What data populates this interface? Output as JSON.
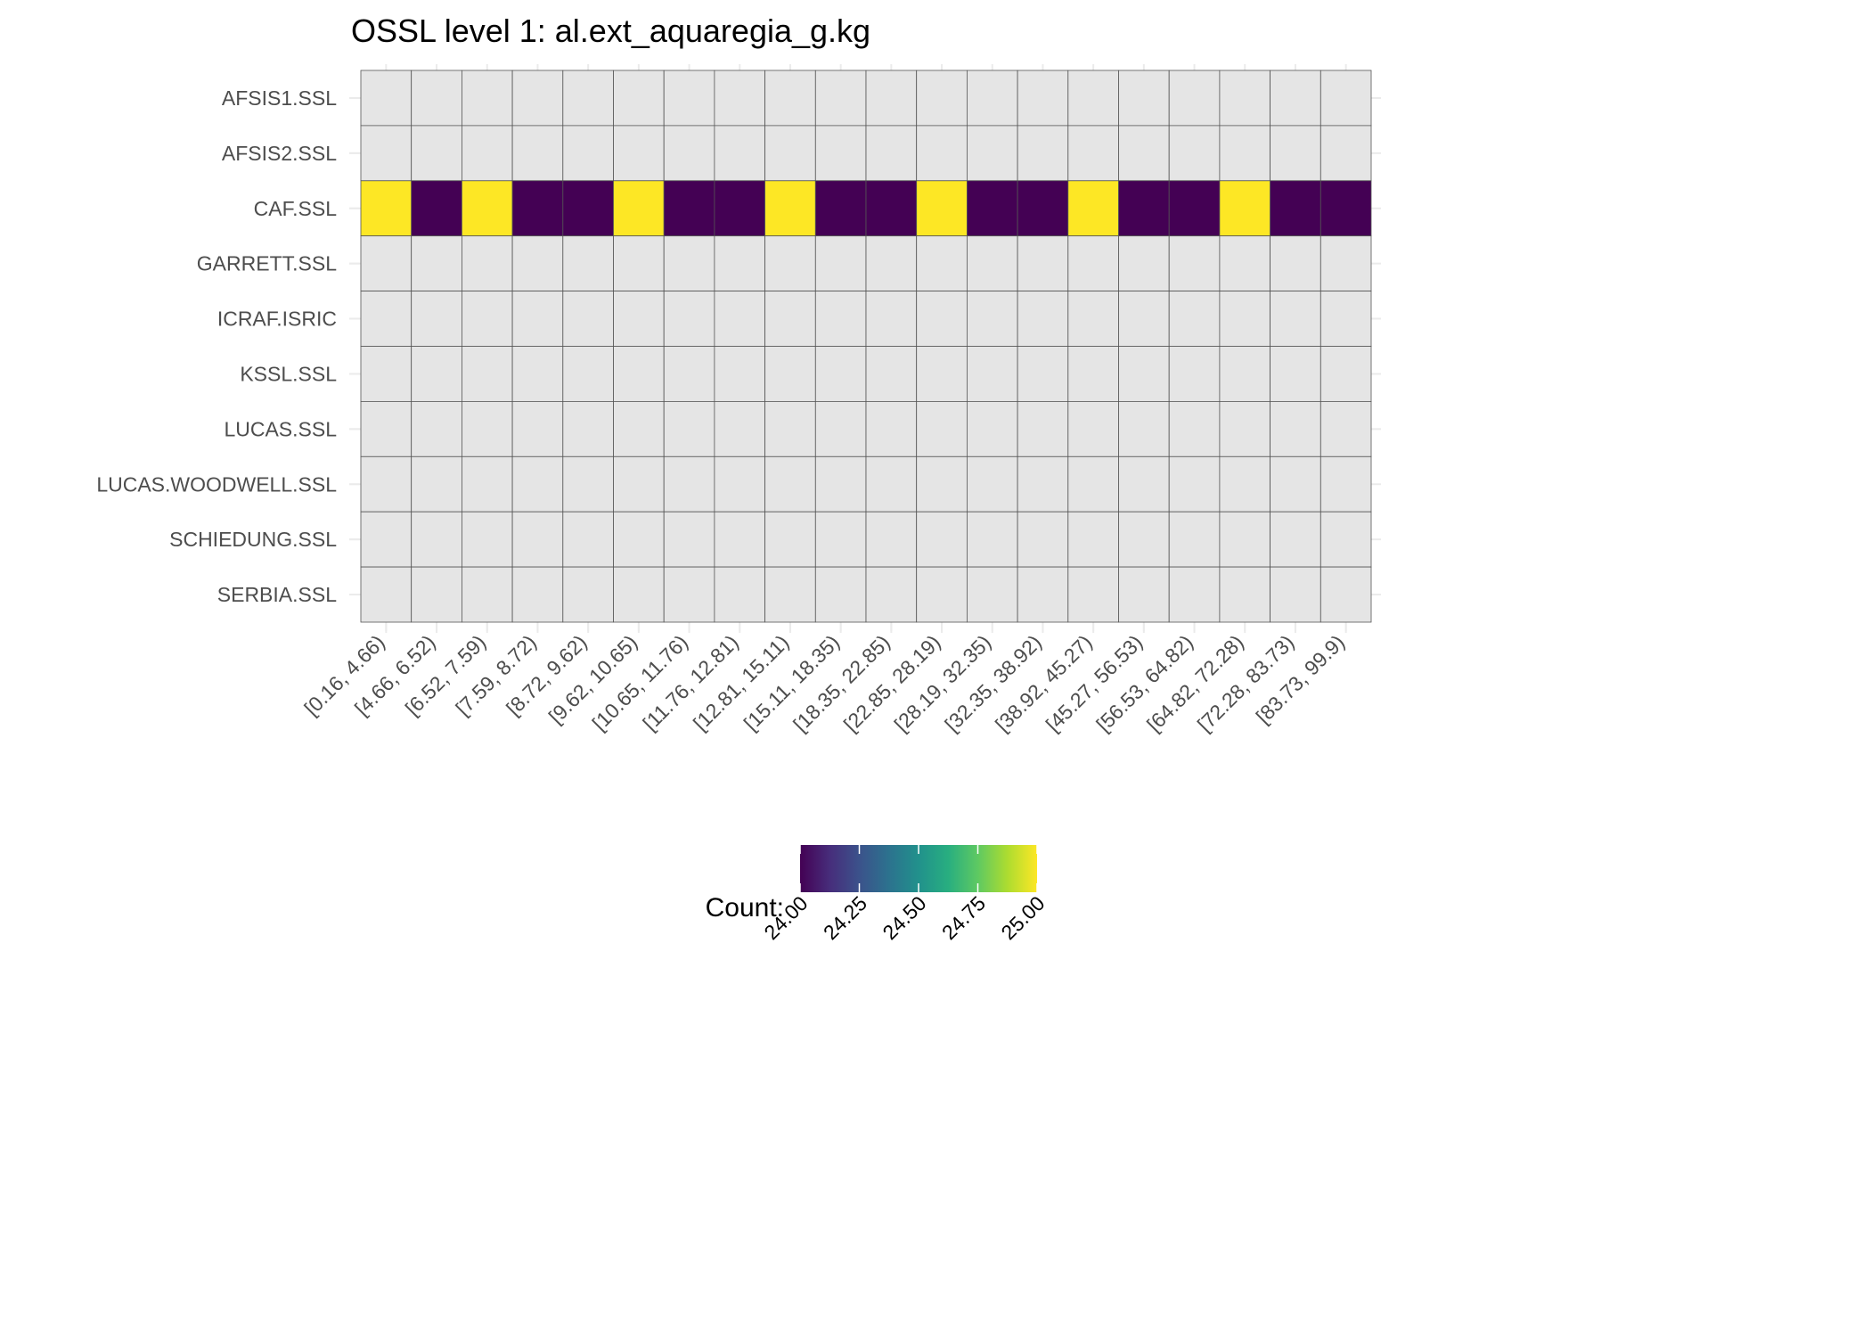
{
  "chart_data": {
    "type": "heatmap",
    "title": "OSSL level 1: al.ext_aquaregia_g.kg",
    "x_categories": [
      "[0.16, 4.66)",
      "[4.66, 6.52)",
      "[6.52, 7.59)",
      "[7.59, 8.72)",
      "[8.72, 9.62)",
      "[9.62, 10.65)",
      "[10.65, 11.76)",
      "[11.76, 12.81)",
      "[12.81, 15.11)",
      "[15.11, 18.35)",
      "[18.35, 22.85)",
      "[22.85, 28.19)",
      "[28.19, 32.35)",
      "[32.35, 38.92)",
      "[38.92, 45.27)",
      "[45.27, 56.53)",
      "[56.53, 64.82)",
      "[64.82, 72.28)",
      "[72.28, 83.73)",
      "[83.73, 99.9)"
    ],
    "y_categories": [
      "AFSIS1.SSL",
      "AFSIS2.SSL",
      "CAF.SSL",
      "GARRETT.SSL",
      "ICRAF.ISRIC",
      "KSSL.SSL",
      "LUCAS.SSL",
      "LUCAS.WOODWELL.SSL",
      "SCHIEDUNG.SSL",
      "SERBIA.SSL"
    ],
    "values": [
      [
        null,
        null,
        null,
        null,
        null,
        null,
        null,
        null,
        null,
        null,
        null,
        null,
        null,
        null,
        null,
        null,
        null,
        null,
        null,
        null
      ],
      [
        null,
        null,
        null,
        null,
        null,
        null,
        null,
        null,
        null,
        null,
        null,
        null,
        null,
        null,
        null,
        null,
        null,
        null,
        null,
        null
      ],
      [
        25,
        24,
        25,
        24,
        24,
        25,
        24,
        24,
        25,
        24,
        24,
        25,
        24,
        24,
        25,
        24,
        24,
        25,
        24,
        24
      ],
      [
        null,
        null,
        null,
        null,
        null,
        null,
        null,
        null,
        null,
        null,
        null,
        null,
        null,
        null,
        null,
        null,
        null,
        null,
        null,
        null
      ],
      [
        null,
        null,
        null,
        null,
        null,
        null,
        null,
        null,
        null,
        null,
        null,
        null,
        null,
        null,
        null,
        null,
        null,
        null,
        null,
        null
      ],
      [
        null,
        null,
        null,
        null,
        null,
        null,
        null,
        null,
        null,
        null,
        null,
        null,
        null,
        null,
        null,
        null,
        null,
        null,
        null,
        null
      ],
      [
        null,
        null,
        null,
        null,
        null,
        null,
        null,
        null,
        null,
        null,
        null,
        null,
        null,
        null,
        null,
        null,
        null,
        null,
        null,
        null
      ],
      [
        null,
        null,
        null,
        null,
        null,
        null,
        null,
        null,
        null,
        null,
        null,
        null,
        null,
        null,
        null,
        null,
        null,
        null,
        null,
        null
      ],
      [
        null,
        null,
        null,
        null,
        null,
        null,
        null,
        null,
        null,
        null,
        null,
        null,
        null,
        null,
        null,
        null,
        null,
        null,
        null,
        null
      ],
      [
        null,
        null,
        null,
        null,
        null,
        null,
        null,
        null,
        null,
        null,
        null,
        null,
        null,
        null,
        null,
        null,
        null,
        null,
        null,
        null
      ]
    ],
    "colorscale": "viridis",
    "na_color": "#e5e5e5",
    "cell_border_color": "#555555",
    "legend": {
      "title": "Count:",
      "range": [
        24,
        25
      ],
      "ticks": [
        "24.00",
        "24.25",
        "24.50",
        "24.75",
        "25.00"
      ],
      "tick_values": [
        24,
        24.25,
        24.5,
        24.75,
        25
      ],
      "placement": "bottom"
    }
  }
}
